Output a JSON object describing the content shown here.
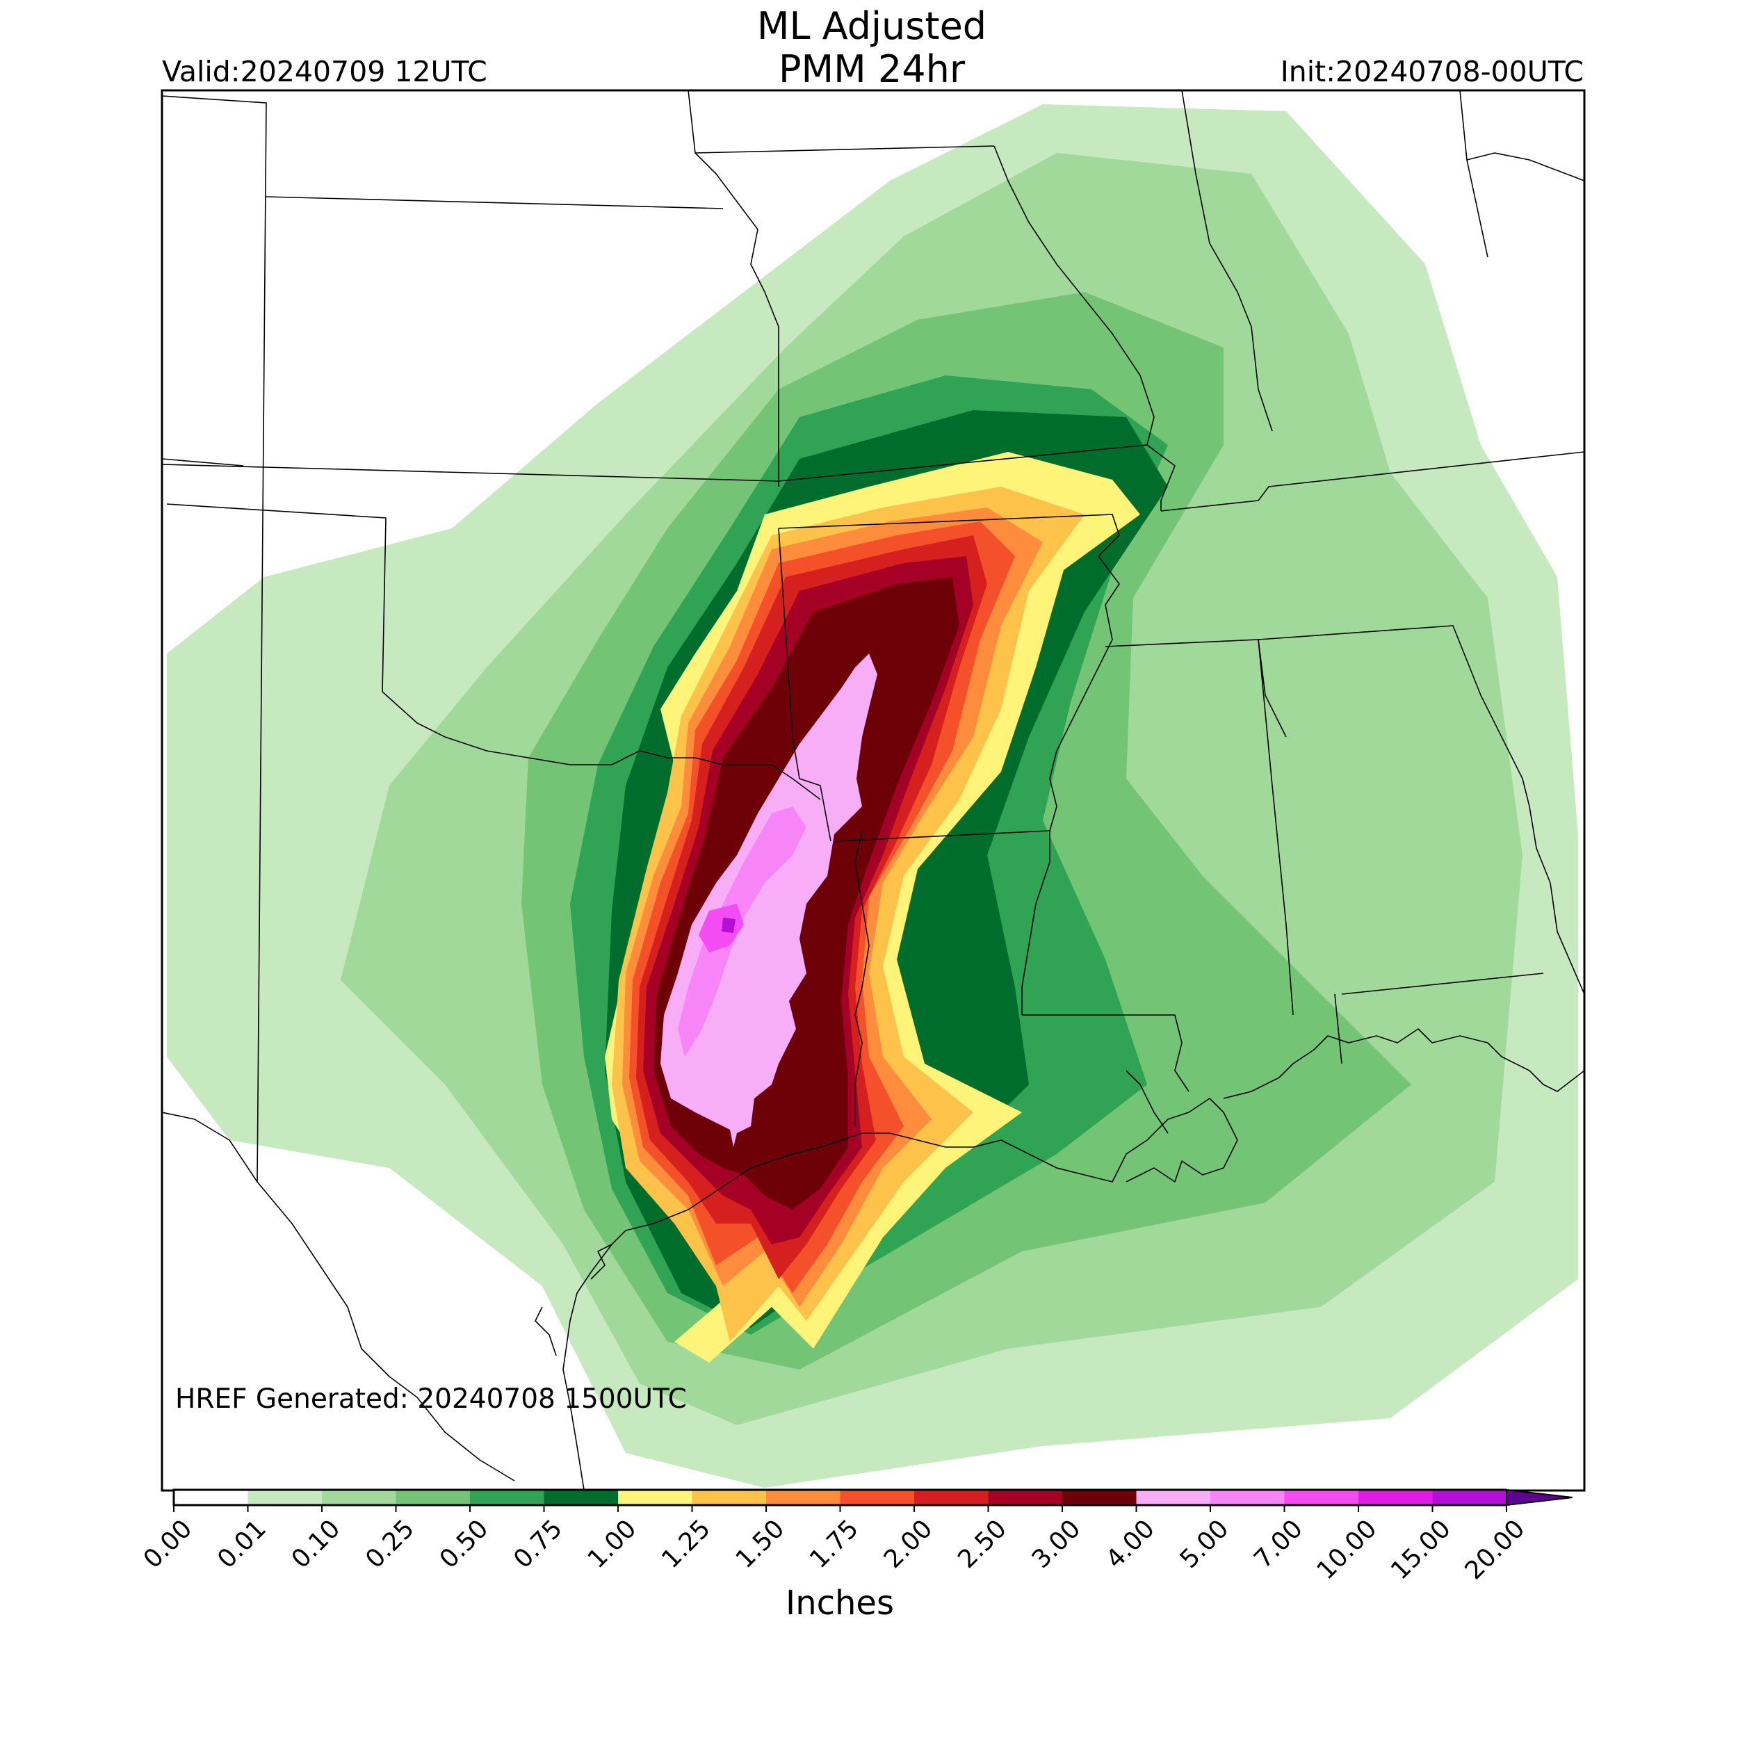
{
  "title_line1": "ML Adjusted",
  "title_line2": "PMM 24hr",
  "valid": "Valid:20240709 12UTC",
  "init": "Init:20240708-00UTC",
  "generated": "HREF Generated: 20240708 1500UTC",
  "colorbar": {
    "units": "Inches",
    "ticks": [
      "0.00",
      "0.01",
      "0.10",
      "0.25",
      "0.50",
      "0.75",
      "1.00",
      "1.25",
      "1.50",
      "1.75",
      "2.00",
      "2.50",
      "3.00",
      "4.00",
      "5.00",
      "7.00",
      "10.00",
      "15.00",
      "20.00"
    ],
    "colors": [
      "#ffffff",
      "#c7e9c0",
      "#a1d99b",
      "#74c476",
      "#31a354",
      "#006d2c",
      "#fff47a",
      "#fdc24a",
      "#fd8d3c",
      "#f4502a",
      "#d6201f",
      "#a50026",
      "#6e0007",
      "#f7aef7",
      "#f785f7",
      "#f24cf2",
      "#e01de5",
      "#b40ed7",
      "#8000c0"
    ],
    "extend_color": "#5e0090"
  },
  "map_features": [
    "precipitation-field",
    "state-boundaries",
    "gulf-coastline"
  ]
}
